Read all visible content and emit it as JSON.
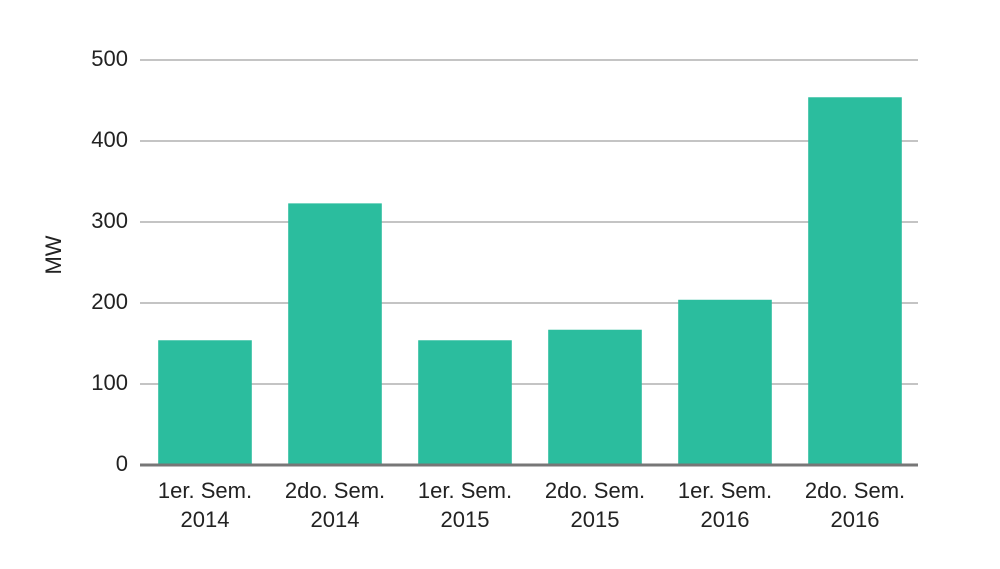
{
  "chart_data": {
    "type": "bar",
    "y_label": "MW",
    "categories": [
      "1er. Sem. 2014",
      "2do. Sem. 2014",
      "1er. Sem. 2015",
      "2do. Sem. 2015",
      "1er. Sem. 2016",
      "2do. Sem. 2016"
    ],
    "values": [
      154,
      323,
      154,
      167,
      204,
      454
    ],
    "color": "#2bbd9e",
    "ylim": [
      0,
      500
    ],
    "yticks": [
      0,
      100,
      200,
      300,
      400,
      500
    ],
    "grid": true
  }
}
